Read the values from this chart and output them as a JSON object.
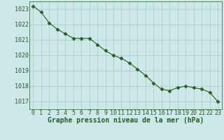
{
  "x": [
    0,
    1,
    2,
    3,
    4,
    5,
    6,
    7,
    8,
    9,
    10,
    11,
    12,
    13,
    14,
    15,
    16,
    17,
    18,
    19,
    20,
    21,
    22,
    23
  ],
  "y": [
    1023.2,
    1022.8,
    1022.1,
    1021.7,
    1021.4,
    1021.1,
    1021.1,
    1021.1,
    1020.7,
    1020.3,
    1020.0,
    1019.8,
    1019.5,
    1019.1,
    1018.7,
    1018.2,
    1017.8,
    1017.7,
    1017.9,
    1018.0,
    1017.9,
    1017.8,
    1017.6,
    1017.0
  ],
  "line_color": "#2d5a27",
  "marker": "D",
  "marker_size": 2.5,
  "bg_color": "#cce8e8",
  "grid_color": "#aaccbb",
  "xlabel": "Graphe pression niveau de la mer (hPa)",
  "ylim": [
    1016.5,
    1023.5
  ],
  "xlim": [
    -0.5,
    23.5
  ],
  "yticks": [
    1017,
    1018,
    1019,
    1020,
    1021,
    1022,
    1023
  ],
  "xticks": [
    0,
    1,
    2,
    3,
    4,
    5,
    6,
    7,
    8,
    9,
    10,
    11,
    12,
    13,
    14,
    15,
    16,
    17,
    18,
    19,
    20,
    21,
    22,
    23
  ],
  "tick_fontsize": 6.0,
  "xlabel_fontsize": 7.0
}
